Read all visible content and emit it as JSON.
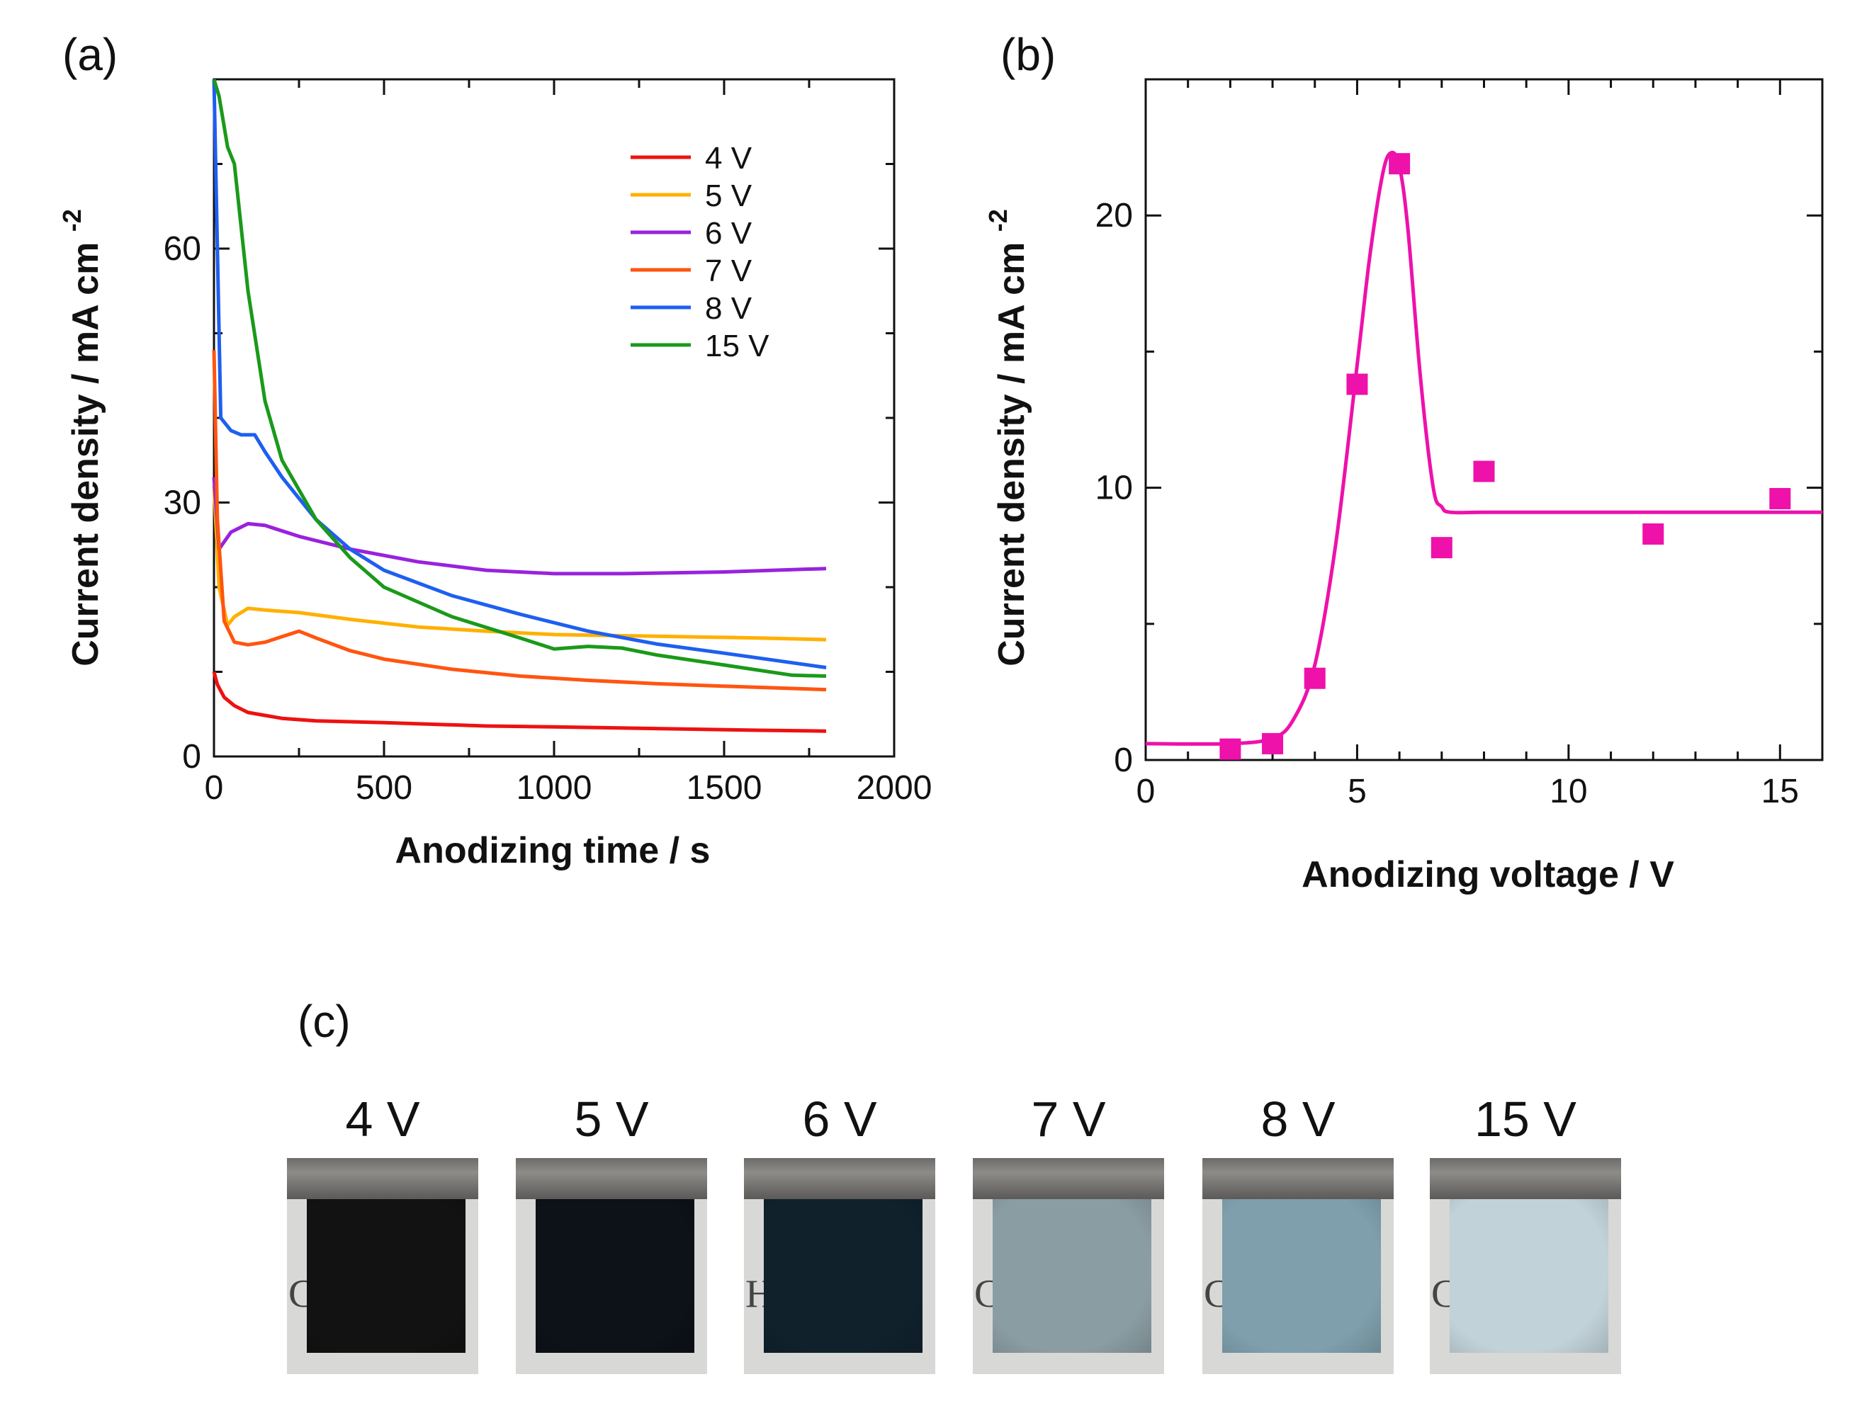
{
  "panels": {
    "a": {
      "label": "(a)"
    },
    "b": {
      "label": "(b)"
    },
    "c": {
      "label": "(c)"
    }
  },
  "chart_data": [
    {
      "type": "line",
      "panel": "a",
      "xlabel": "Anodizing time / s",
      "ylabel": "Current density / mA cm",
      "ylabel_sup": "-2",
      "xlim": [
        0,
        2000
      ],
      "ylim": [
        0,
        80
      ],
      "xticks": [
        0,
        500,
        1000,
        1500,
        2000
      ],
      "yticks": [
        0,
        30,
        60
      ],
      "grid": false,
      "legend_position": "top-right",
      "series": [
        {
          "name": "4 V",
          "color": "#ee1111",
          "x": [
            0,
            10,
            30,
            60,
            100,
            200,
            300,
            500,
            800,
            1000,
            1300,
            1600,
            1800
          ],
          "y": [
            10,
            8.5,
            7,
            6,
            5.2,
            4.5,
            4.2,
            4.0,
            3.6,
            3.5,
            3.3,
            3.1,
            3.0
          ]
        },
        {
          "name": "5 V",
          "color": "#ffb000",
          "x": [
            0,
            15,
            40,
            60,
            100,
            150,
            250,
            400,
            600,
            800,
            1000,
            1300,
            1600,
            1800
          ],
          "y": [
            32,
            20,
            15.5,
            16.5,
            17.5,
            17.3,
            17,
            16.2,
            15.3,
            14.8,
            14.4,
            14.2,
            14,
            13.8
          ]
        },
        {
          "name": "6 V",
          "color": "#9922dd",
          "x": [
            0,
            15,
            50,
            100,
            150,
            250,
            400,
            600,
            800,
            1000,
            1200,
            1500,
            1800
          ],
          "y": [
            33,
            24.5,
            26.5,
            27.5,
            27.3,
            26,
            24.5,
            23,
            22,
            21.6,
            21.6,
            21.8,
            22.2
          ]
        },
        {
          "name": "7 V",
          "color": "#ff5510",
          "x": [
            0,
            10,
            30,
            60,
            100,
            150,
            250,
            300,
            400,
            500,
            700,
            900,
            1100,
            1300,
            1500,
            1800
          ],
          "y": [
            48,
            28,
            16,
            13.5,
            13.2,
            13.5,
            14.8,
            14,
            12.5,
            11.5,
            10.3,
            9.5,
            9.0,
            8.6,
            8.3,
            7.9
          ]
        },
        {
          "name": "8 V",
          "color": "#1e5ff0",
          "x": [
            0,
            20,
            50,
            80,
            120,
            150,
            200,
            300,
            400,
            500,
            700,
            900,
            1100,
            1300,
            1500,
            1800
          ],
          "y": [
            80,
            40,
            38.5,
            38,
            38,
            36,
            33,
            28,
            24.5,
            22,
            19,
            16.8,
            14.8,
            13.3,
            12.2,
            10.5
          ]
        },
        {
          "name": "15 V",
          "color": "#1a9a1a",
          "x": [
            0,
            15,
            40,
            60,
            100,
            150,
            200,
            300,
            400,
            500,
            700,
            900,
            1000,
            1100,
            1200,
            1300,
            1500,
            1700,
            1800
          ],
          "y": [
            80,
            78,
            72,
            70,
            55,
            42,
            35,
            28,
            23.5,
            20,
            16.5,
            14,
            12.7,
            13,
            12.8,
            12,
            10.8,
            9.6,
            9.5
          ]
        }
      ]
    },
    {
      "type": "scatter",
      "panel": "b",
      "xlabel": "Anodizing voltage / V",
      "ylabel": "Current density / mA cm",
      "ylabel_sup": "-2",
      "xlim": [
        0,
        16
      ],
      "ylim": [
        0,
        25
      ],
      "xticks": [
        0,
        5,
        10,
        15
      ],
      "yticks": [
        0,
        10,
        20
      ],
      "grid": false,
      "marker_color": "#ee11aa",
      "points": {
        "x": [
          2,
          3,
          4,
          5,
          6,
          7,
          8,
          12,
          15
        ],
        "y": [
          0.4,
          0.6,
          3.0,
          13.8,
          21.9,
          7.8,
          10.6,
          8.3,
          9.6
        ]
      },
      "fit_curve": {
        "x": [
          0,
          2,
          3,
          3.5,
          4,
          4.5,
          5,
          5.3,
          5.6,
          5.8,
          6.0,
          6.2,
          6.5,
          6.8,
          7.0,
          7.2,
          8,
          10,
          12,
          14,
          16
        ],
        "y": [
          0.6,
          0.6,
          0.8,
          1.5,
          3.5,
          8,
          14.5,
          18.5,
          21.5,
          22.3,
          21.8,
          19.5,
          14,
          10,
          9.3,
          9.1,
          9.1,
          9.1,
          9.1,
          9.1,
          9.1
        ]
      }
    }
  ],
  "samples": [
    {
      "label": "4 V",
      "coating": "#121212",
      "print": "C"
    },
    {
      "label": "5 V",
      "coating": "#0d1118",
      "print": ""
    },
    {
      "label": "6 V",
      "coating": "#10212c",
      "print": "H"
    },
    {
      "label": "7 V",
      "coating": "#8a9da3",
      "print": "C"
    },
    {
      "label": "8 V",
      "coating": "#7f9fad",
      "print": "C"
    },
    {
      "label": "15 V",
      "coating": "#c1d2d8",
      "print": "C"
    }
  ]
}
